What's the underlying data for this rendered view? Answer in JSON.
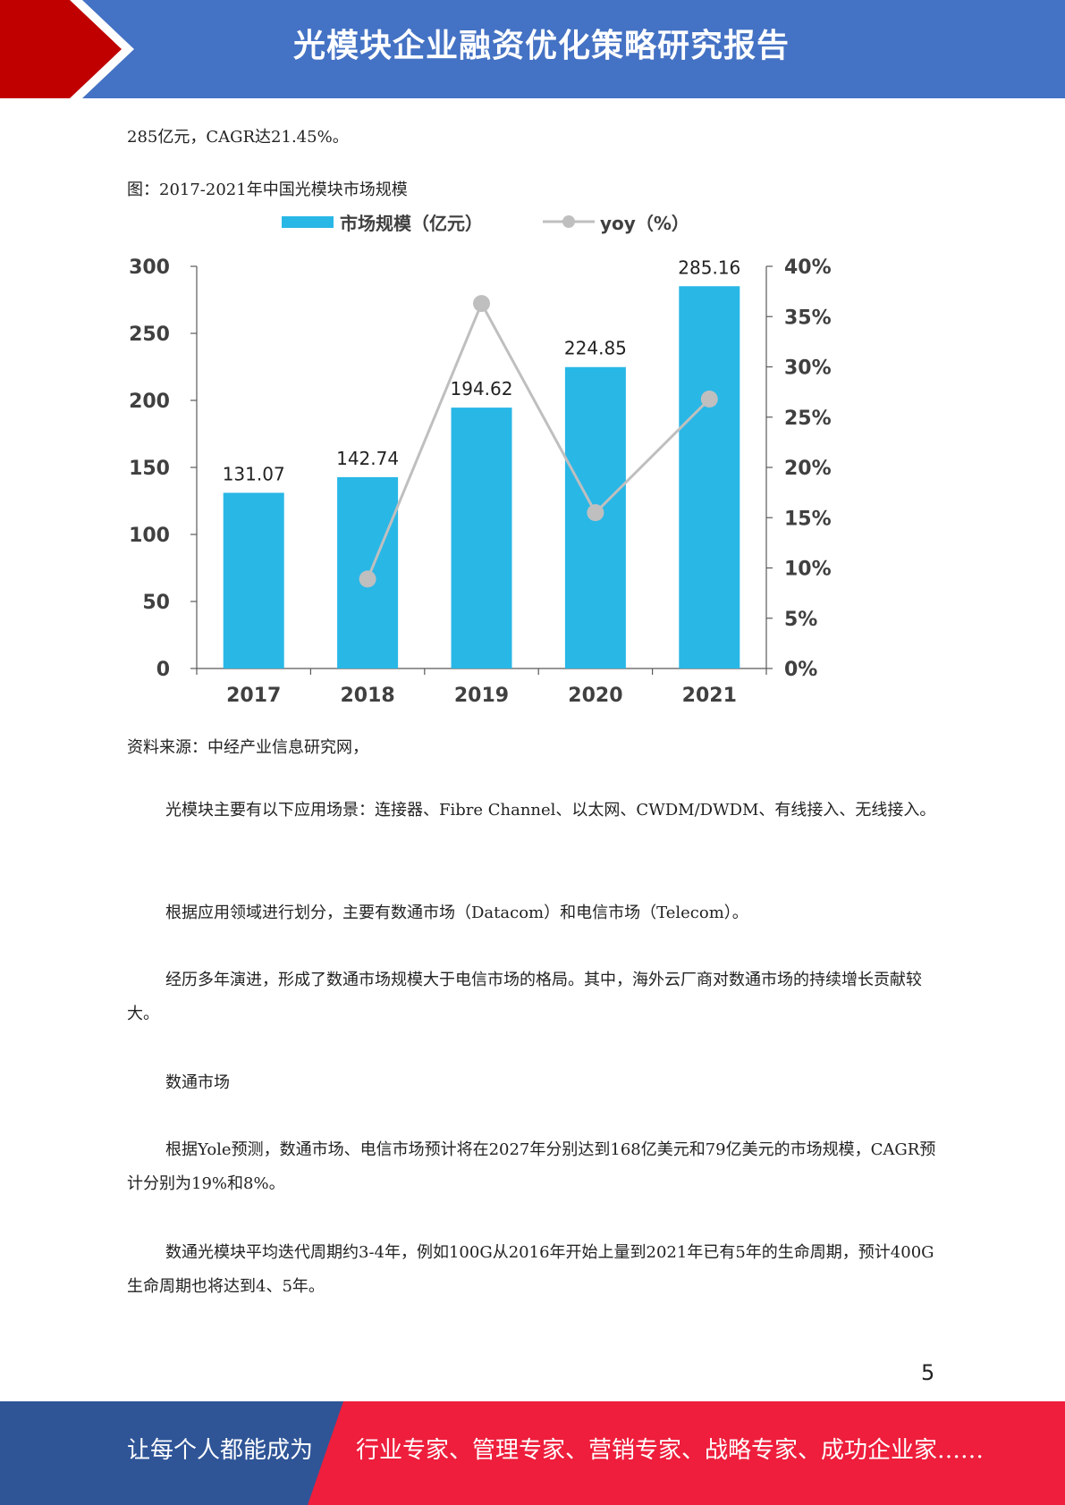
{
  "header": {
    "title": "光模块企业融资优化策略研究报告"
  },
  "colors": {
    "header_blue": "#4472c4",
    "header_red": "#c00000",
    "bar": "#29b7e6",
    "line": "#bfbfbf",
    "footer_blue": "#2f5597",
    "footer_red": "#ee1e3c"
  },
  "content": {
    "intro_line": "285亿元，CAGR达21.45%。",
    "figure_caption": "图：2017-2021年中国光模块市场规模",
    "source": "资料来源：中经产业信息研究网，",
    "p1": "光模块主要有以下应用场景：连接器、Fibre Channel、以太网、CWDM/DWDM、有线接入、无线接入。",
    "p2": "根据应用领域进行划分，主要有数通市场（Datacom）和电信市场（Telecom）。",
    "p3": "经历多年演进，形成了数通市场规模大于电信市场的格局。其中，海外云厂商对数通市场的持续增长贡献较大。",
    "p4": "数通市场",
    "p5": "根据Yole预测，数通市场、电信市场预计将在2027年分别达到168亿美元和79亿美元的市场规模，CAGR预计分别为19%和8%。",
    "p6": "数通光模块平均迭代周期约3-4年，例如100G从2016年开始上量到2021年已有5年的生命周期，预计400G生命周期也将达到4、5年。"
  },
  "chart_data": {
    "type": "bar",
    "categories": [
      "2017",
      "2018",
      "2019",
      "2020",
      "2021"
    ],
    "series": [
      {
        "name": "市场规模（亿元）",
        "type": "bar",
        "axis": "left",
        "values": [
          131.07,
          142.74,
          194.62,
          224.85,
          285.16
        ],
        "labels": [
          "131.07",
          "142.74",
          "194.62",
          "224.85",
          "285.16"
        ]
      },
      {
        "name": "yoy（%）",
        "type": "line",
        "axis": "right",
        "values": [
          null,
          8.9,
          36.3,
          15.5,
          26.8
        ]
      }
    ],
    "y_left": {
      "min": 0,
      "max": 300,
      "ticks": [
        "0",
        "50",
        "100",
        "150",
        "200",
        "250",
        "300"
      ]
    },
    "y_right": {
      "min": 0,
      "max": 40,
      "ticks": [
        "0%",
        "5%",
        "10%",
        "15%",
        "20%",
        "25%",
        "30%",
        "35%",
        "40%"
      ]
    },
    "legend_position": "top",
    "grid": false
  },
  "page_number": "5",
  "footer": {
    "left": "让每个人都能成为",
    "right": "行业专家、管理专家、营销专家、战略专家、成功企业家……"
  }
}
